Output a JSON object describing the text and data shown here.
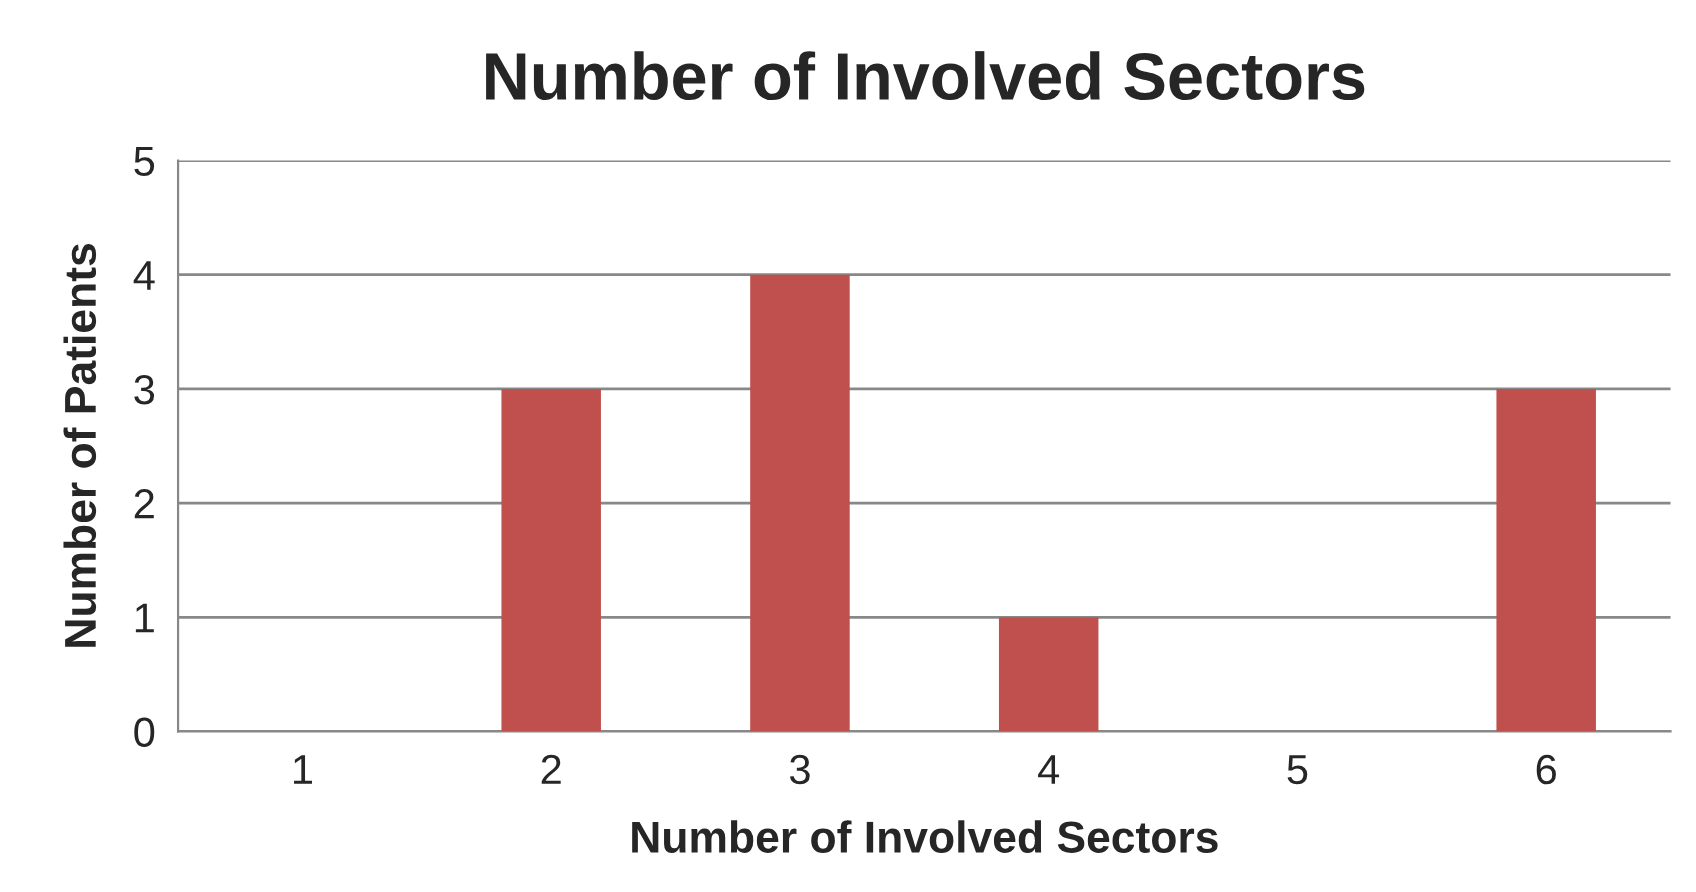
{
  "chart_data": {
    "type": "bar",
    "title": "Number of Involved Sectors",
    "xlabel": "Number of Involved Sectors",
    "ylabel": "Number of Patients",
    "categories": [
      "1",
      "2",
      "3",
      "4",
      "5",
      "6"
    ],
    "values": [
      0,
      3,
      4,
      1,
      0,
      3
    ],
    "color": "#c0504d",
    "ylim": [
      0,
      5
    ],
    "yticks": [
      0,
      1,
      2,
      3,
      4,
      5
    ],
    "grid": "y",
    "legend": false
  }
}
